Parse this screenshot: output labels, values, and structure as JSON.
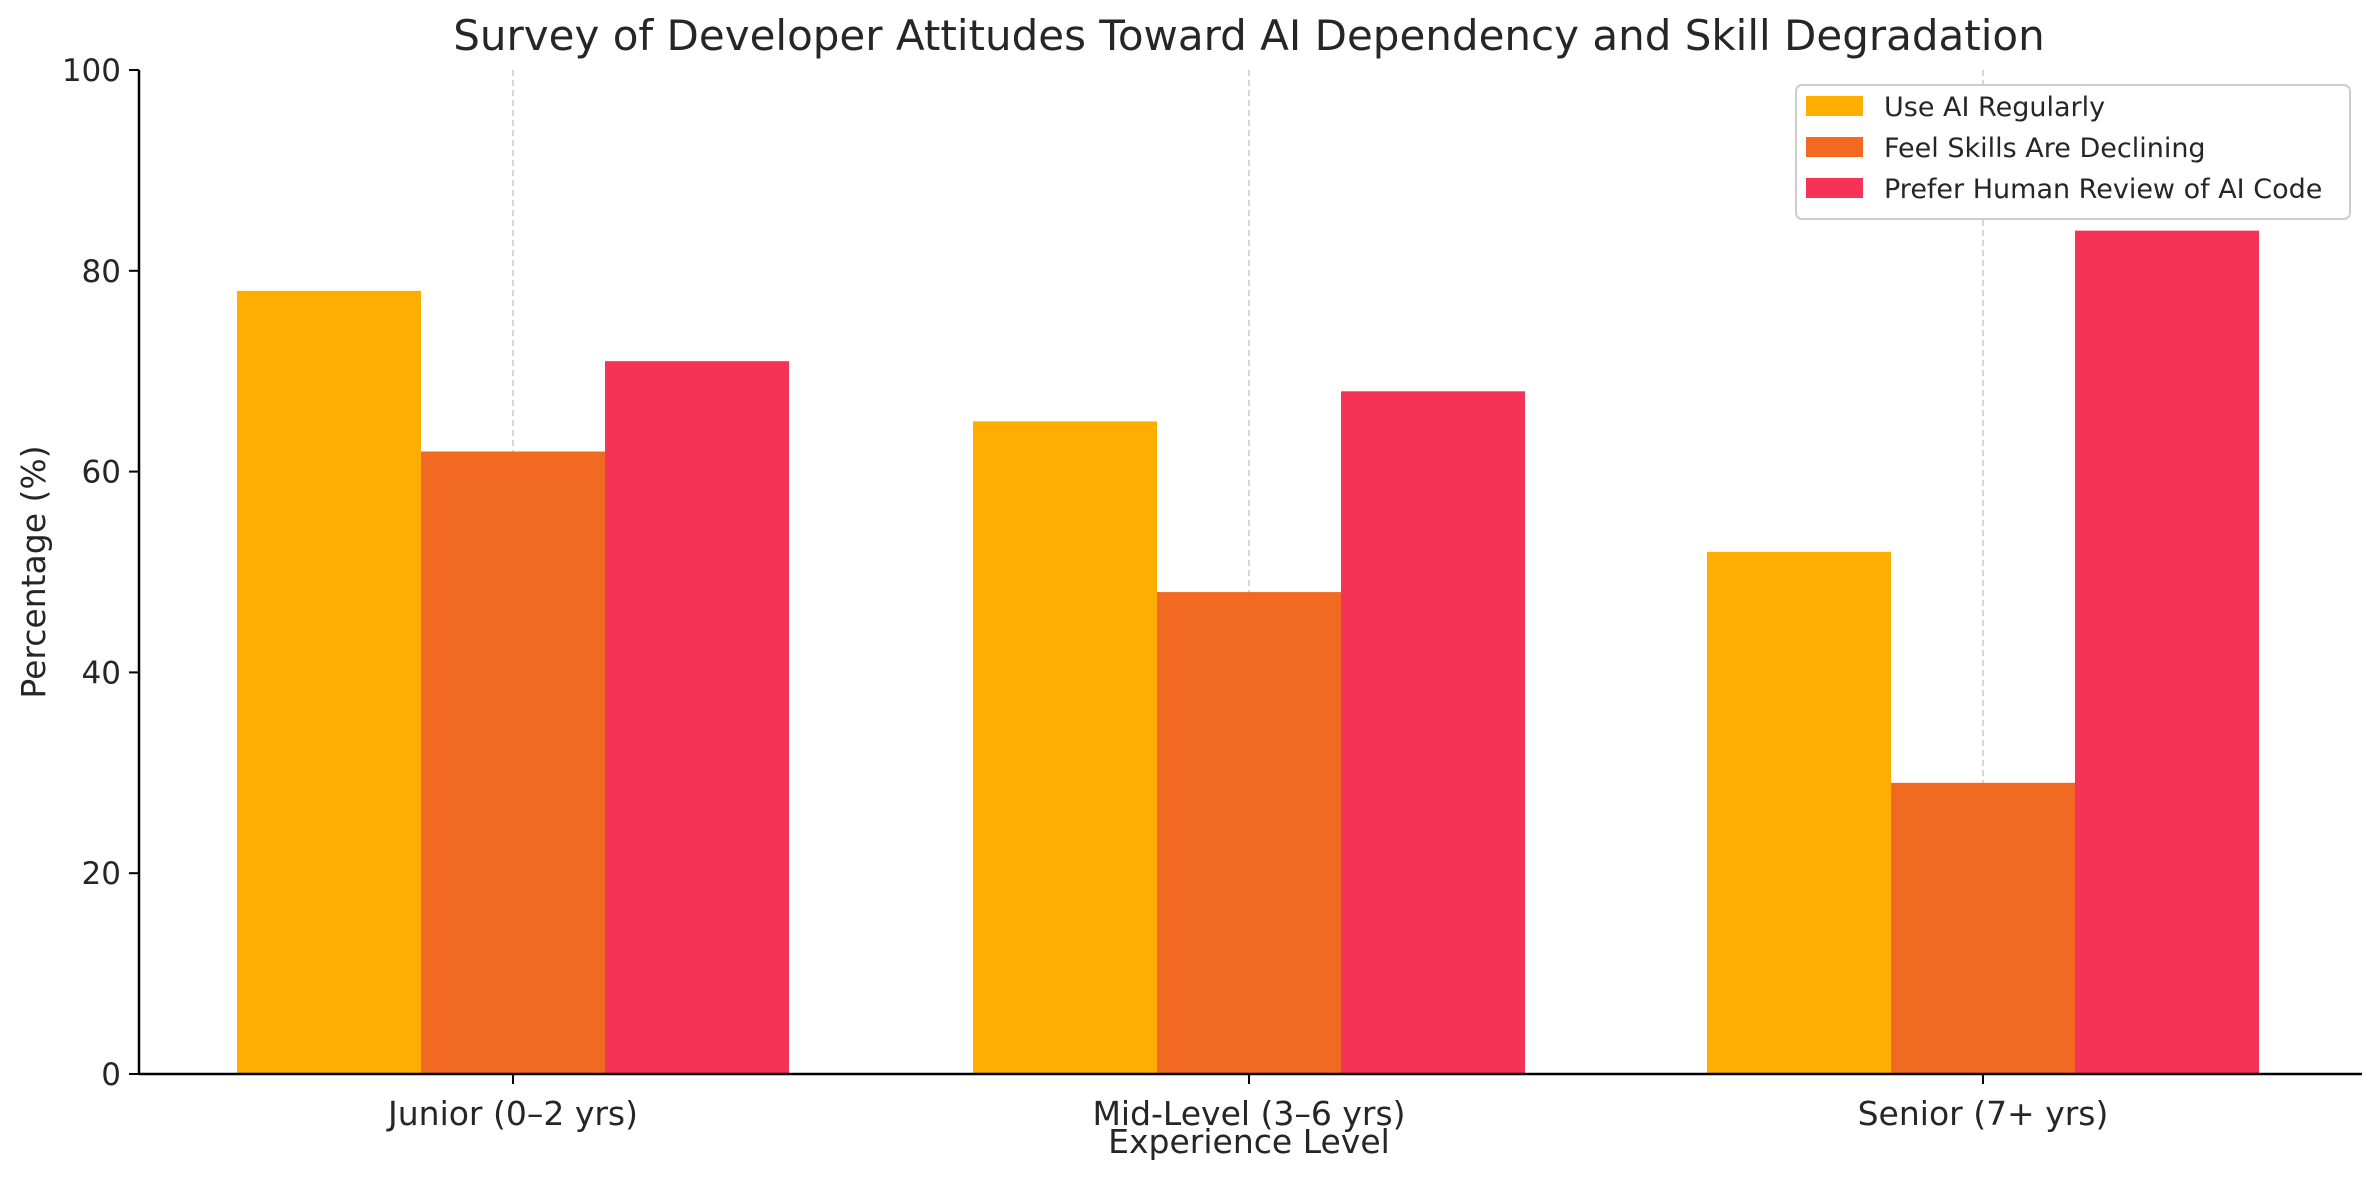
{
  "chart_data": {
    "type": "bar",
    "title": "Survey of Developer Attitudes Toward AI Dependency and Skill Degradation",
    "xlabel": "Experience Level",
    "ylabel": "Percentage (%)",
    "ylim": [
      0,
      100
    ],
    "yticks": [
      "0",
      "20",
      "40",
      "60",
      "80",
      "100"
    ],
    "categories": [
      "Junior (0–2 yrs)",
      "Mid-Level (3–6 yrs)",
      "Senior (7+ yrs)"
    ],
    "series": [
      {
        "name": "Use AI Regularly",
        "color": "#FFAE00",
        "values": [
          78,
          65,
          52
        ]
      },
      {
        "name": "Feel Skills Are Declining",
        "color": "#F26A22",
        "values": [
          62,
          48,
          29
        ]
      },
      {
        "name": "Prefer Human Review of AI Code",
        "color": "#F53357",
        "values": [
          71,
          68,
          84
        ]
      }
    ],
    "grid": "x-axis dashed",
    "legend_position": "top-right"
  }
}
